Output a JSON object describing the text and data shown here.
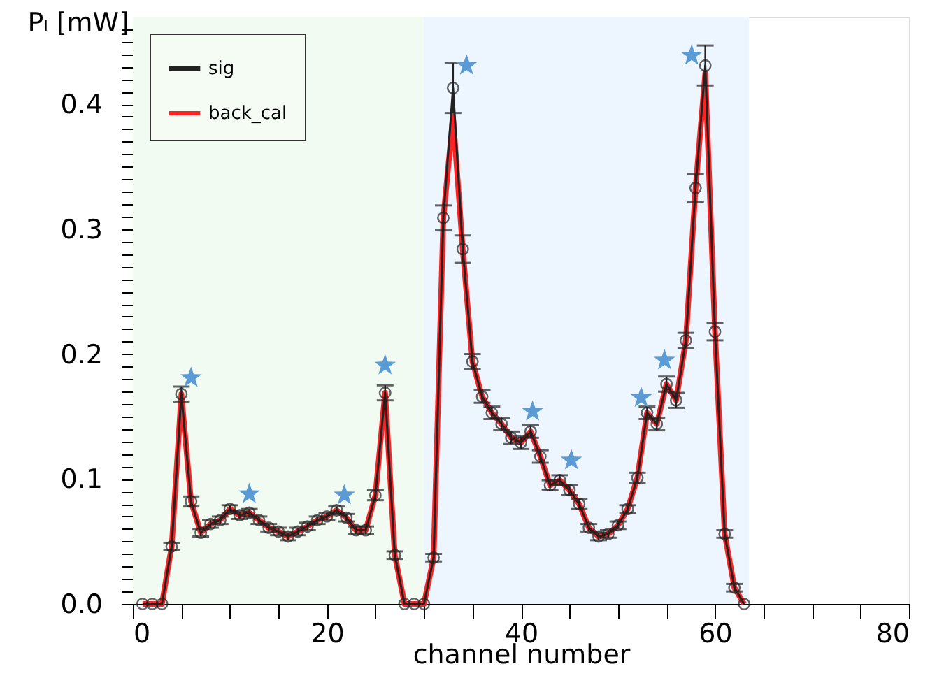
{
  "chart_data": {
    "type": "line",
    "xlabel": "channel number",
    "ylabel": "Pₗ [mW]",
    "x": [
      1,
      2,
      3,
      4,
      5,
      6,
      7,
      8,
      9,
      10,
      11,
      12,
      13,
      14,
      15,
      16,
      17,
      18,
      19,
      20,
      21,
      22,
      23,
      24,
      25,
      26,
      27,
      28,
      29,
      30,
      31,
      32,
      33,
      34,
      35,
      36,
      37,
      38,
      39,
      40,
      41,
      42,
      43,
      44,
      45,
      46,
      47,
      48,
      49,
      50,
      51,
      52,
      53,
      54,
      55,
      56,
      57,
      58,
      59,
      60,
      61,
      62,
      63
    ],
    "series": [
      {
        "name": "sig",
        "type": "line",
        "marker": "circle",
        "color": "#222222",
        "values": [
          0,
          0,
          0,
          0.046,
          0.168,
          0.082,
          0.057,
          0.064,
          0.067,
          0.076,
          0.071,
          0.073,
          0.067,
          0.061,
          0.058,
          0.054,
          0.058,
          0.062,
          0.067,
          0.07,
          0.075,
          0.069,
          0.059,
          0.059,
          0.087,
          0.169,
          0.039,
          0,
          0,
          0,
          0.037,
          0.309,
          0.413,
          0.284,
          0.194,
          0.166,
          0.153,
          0.144,
          0.133,
          0.129,
          0.138,
          0.118,
          0.095,
          0.099,
          0.091,
          0.08,
          0.061,
          0.054,
          0.056,
          0.063,
          0.076,
          0.101,
          0.153,
          0.144,
          0.176,
          0.163,
          0.211,
          0.333,
          0.431,
          0.218,
          0.056,
          0.013,
          0
        ],
        "errors": [
          null,
          null,
          null,
          0.003,
          0.006,
          0.004,
          0.003,
          0.003,
          0.003,
          0.003,
          0.003,
          0.003,
          0.003,
          0.003,
          0.003,
          0.003,
          0.003,
          0.003,
          0.003,
          0.003,
          0.003,
          0.003,
          0.003,
          0.003,
          0.004,
          0.006,
          0.003,
          null,
          null,
          null,
          0.003,
          0.01,
          0.02,
          0.011,
          0.006,
          0.005,
          0.005,
          0.005,
          0.005,
          0.005,
          0.005,
          0.005,
          0.004,
          0.004,
          0.004,
          0.004,
          0.003,
          0.003,
          0.003,
          0.003,
          0.003,
          0.004,
          0.005,
          0.005,
          0.006,
          0.006,
          0.006,
          0.011,
          0.016,
          0.007,
          0.003,
          0.003,
          null
        ]
      },
      {
        "name": "back_cal",
        "type": "line",
        "marker": "none",
        "color": "#ff2222",
        "values": [
          0,
          0,
          0,
          0.046,
          0.168,
          0.082,
          0.057,
          0.064,
          0.067,
          0.076,
          0.071,
          0.073,
          0.067,
          0.061,
          0.058,
          0.054,
          0.058,
          0.062,
          0.067,
          0.07,
          0.075,
          0.069,
          0.059,
          0.059,
          0.087,
          0.169,
          0.039,
          0,
          0,
          0,
          0.037,
          0.309,
          0.39,
          0.284,
          0.194,
          0.166,
          0.153,
          0.144,
          0.133,
          0.129,
          0.138,
          0.118,
          0.095,
          0.099,
          0.091,
          0.08,
          0.061,
          0.054,
          0.056,
          0.063,
          0.076,
          0.101,
          0.153,
          0.144,
          0.176,
          0.163,
          0.211,
          0.333,
          0.425,
          0.218,
          0.056,
          0.013,
          0
        ]
      },
      {
        "type": "scatter",
        "marker": "star",
        "color": "#5b9bd5",
        "x": [
          6.0,
          12.0,
          21.8,
          26.0,
          34.4,
          41.2,
          45.2,
          52.4,
          54.8,
          57.6
        ],
        "values": [
          0.181,
          0.088,
          0.087,
          0.191,
          0.431,
          0.154,
          0.115,
          0.165,
          0.195,
          0.439
        ]
      }
    ],
    "bands": [
      {
        "axis": "x",
        "from": 0,
        "to": 30,
        "color": "#f1fbf1"
      },
      {
        "axis": "x",
        "from": 30,
        "to": 63.5,
        "color": "#edf5fe"
      }
    ],
    "xlim": [
      0,
      80
    ],
    "xticks": [
      0,
      {
        "value": 5,
        "label": null
      },
      {
        "value": 10,
        "label": null
      },
      {
        "value": 15,
        "label": null
      },
      20,
      {
        "value": 25,
        "label": null
      },
      {
        "value": 30,
        "label": null
      },
      {
        "value": 35,
        "label": null
      },
      40,
      {
        "value": 45,
        "label": null
      },
      {
        "value": 50,
        "label": null
      },
      {
        "value": 55,
        "label": null
      },
      60,
      {
        "value": 65,
        "label": null
      },
      {
        "value": 70,
        "label": null
      },
      {
        "value": 75,
        "label": null
      },
      80
    ],
    "ylim": [
      0,
      0.47
    ],
    "yticks": [
      {
        "value": 0,
        "label": "0.0"
      },
      {
        "value": 0.01,
        "label": null
      },
      {
        "value": 0.02,
        "label": null
      },
      {
        "value": 0.03,
        "label": null
      },
      {
        "value": 0.04,
        "label": null
      },
      {
        "value": 0.05,
        "label": null
      },
      {
        "value": 0.06,
        "label": null
      },
      {
        "value": 0.07,
        "label": null
      },
      {
        "value": 0.08,
        "label": null
      },
      {
        "value": 0.09,
        "label": null
      },
      0.1,
      {
        "value": 0.11,
        "label": null
      },
      {
        "value": 0.12,
        "label": null
      },
      {
        "value": 0.13,
        "label": null
      },
      {
        "value": 0.14,
        "label": null
      },
      {
        "value": 0.15,
        "label": null
      },
      {
        "value": 0.16,
        "label": null
      },
      {
        "value": 0.17,
        "label": null
      },
      {
        "value": 0.18,
        "label": null
      },
      {
        "value": 0.19,
        "label": null
      },
      0.2,
      {
        "value": 0.21,
        "label": null
      },
      {
        "value": 0.22,
        "label": null
      },
      {
        "value": 0.23,
        "label": null
      },
      {
        "value": 0.24,
        "label": null
      },
      {
        "value": 0.25,
        "label": null
      },
      {
        "value": 0.26,
        "label": null
      },
      {
        "value": 0.27,
        "label": null
      },
      {
        "value": 0.28,
        "label": null
      },
      {
        "value": 0.29,
        "label": null
      },
      0.3,
      {
        "value": 0.31,
        "label": null
      },
      {
        "value": 0.32,
        "label": null
      },
      {
        "value": 0.33,
        "label": null
      },
      {
        "value": 0.34,
        "label": null
      },
      {
        "value": 0.35,
        "label": null
      },
      {
        "value": 0.36,
        "label": null
      },
      {
        "value": 0.37,
        "label": null
      },
      {
        "value": 0.38,
        "label": null
      },
      {
        "value": 0.39,
        "label": null
      },
      0.4,
      {
        "value": 0.41,
        "label": null
      },
      {
        "value": 0.42,
        "label": null
      },
      {
        "value": 0.43,
        "label": null
      },
      {
        "value": 0.44,
        "label": null
      },
      {
        "value": 0.45,
        "label": null
      },
      {
        "value": 0.46,
        "label": null
      }
    ],
    "grid": false,
    "legend": "top left"
  }
}
